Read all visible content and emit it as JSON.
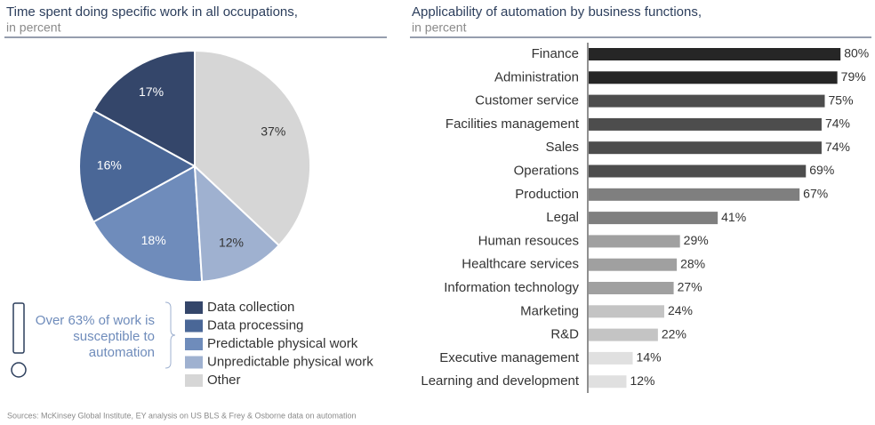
{
  "chart_data": [
    {
      "type": "pie",
      "title": "Time spent doing specific work in all occupations,",
      "subtitle": "in percent",
      "categories": [
        "Data collection",
        "Data processing",
        "Predictable physical work",
        "Unpredictable physical work",
        "Other"
      ],
      "values": [
        17,
        16,
        18,
        12,
        37
      ],
      "value_labels": [
        "17%",
        "16%",
        "18%",
        "12%",
        "37%"
      ],
      "colors": [
        "#34466a",
        "#4a6797",
        "#6f8cbb",
        "#9fb1d0",
        "#d6d6d6"
      ],
      "annotation": [
        "Over 63% of work is",
        "susceptible to",
        "automation"
      ]
    },
    {
      "type": "hbar",
      "title": "Applicability of automation by business functions,",
      "subtitle": "in percent",
      "categories": [
        "Finance",
        "Administration",
        "Customer service",
        "Facilities management",
        "Sales",
        "Operations",
        "Production",
        "Legal",
        "Human resouces",
        "Healthcare services",
        "Information technology",
        "Marketing",
        "R&D",
        "Executive management",
        "Learning and development"
      ],
      "values": [
        80,
        79,
        75,
        74,
        74,
        69,
        67,
        41,
        29,
        28,
        27,
        24,
        22,
        14,
        12
      ],
      "value_labels": [
        "80%",
        "79%",
        "75%",
        "74%",
        "74%",
        "69%",
        "67%",
        "41%",
        "29%",
        "28%",
        "27%",
        "24%",
        "22%",
        "14%",
        "12%"
      ],
      "colors": [
        "#262626",
        "#262626",
        "#4d4d4d",
        "#4d4d4d",
        "#4d4d4d",
        "#4d4d4d",
        "#7f7f7f",
        "#7f7f7f",
        "#a0a0a0",
        "#a0a0a0",
        "#a0a0a0",
        "#c4c4c4",
        "#c4c4c4",
        "#e0e0e0",
        "#e0e0e0"
      ]
    }
  ],
  "source": "Sources: McKinsey Global Institute, EY analysis on US BLS & Frey & Osborne data on automation"
}
